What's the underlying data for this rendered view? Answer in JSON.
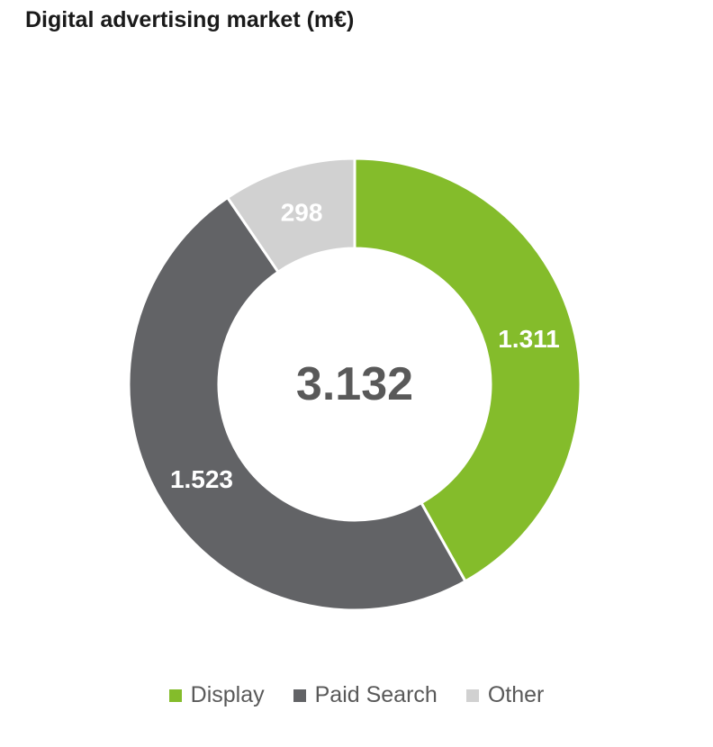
{
  "title": "Digital advertising market (m€)",
  "chart_data": {
    "type": "pie",
    "subtype": "donut",
    "title": "Digital advertising market (m€)",
    "categories": [
      "Display",
      "Paid Search",
      "Other"
    ],
    "values": [
      1311,
      1523,
      298
    ],
    "value_labels": [
      "1.311",
      "1.523",
      "298"
    ],
    "center_total": "3.132",
    "colors": [
      "#84BC2B",
      "#626366",
      "#D1D1D1"
    ],
    "label_text_color": "#ffffff",
    "center_text_color": "#595959",
    "separator_color": "#ffffff",
    "legend_position": "bottom",
    "start_angle_deg": 0,
    "direction": "clockwise",
    "donut_hole_ratio": 0.6
  }
}
